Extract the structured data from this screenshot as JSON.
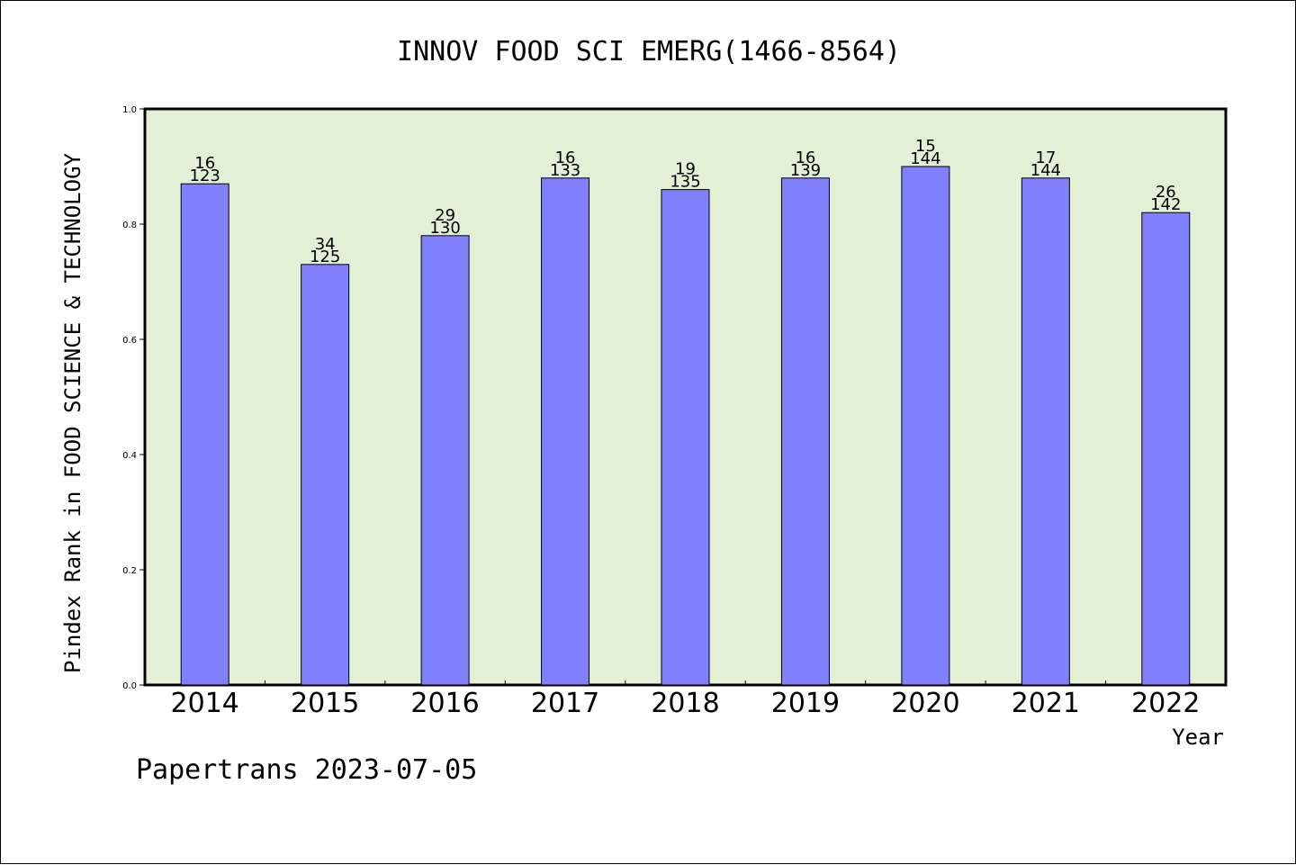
{
  "chart_data": {
    "type": "bar",
    "title": "INNOV FOOD SCI EMERG(1466-8564)",
    "xlabel": "Year",
    "ylabel": "Pindex Rank in FOOD SCIENCE & TECHNOLOGY",
    "ylim": [
      0,
      1.0
    ],
    "yticks": [
      "0.0",
      "0.2",
      "0.4",
      "0.6",
      "0.8",
      "1.0"
    ],
    "categories": [
      "2014",
      "2015",
      "2016",
      "2017",
      "2018",
      "2019",
      "2020",
      "2021",
      "2022"
    ],
    "values": [
      0.87,
      0.73,
      0.78,
      0.88,
      0.86,
      0.88,
      0.9,
      0.88,
      0.82
    ],
    "rank_labels": [
      "16",
      "34",
      "29",
      "16",
      "19",
      "16",
      "15",
      "17",
      "26"
    ],
    "total_labels": [
      "123",
      "125",
      "130",
      "133",
      "135",
      "139",
      "144",
      "144",
      "142"
    ],
    "grid": false,
    "bar_color": "#8080ff",
    "plot_background": "#e2f0d6"
  },
  "footer": "Papertrans 2023-07-05"
}
